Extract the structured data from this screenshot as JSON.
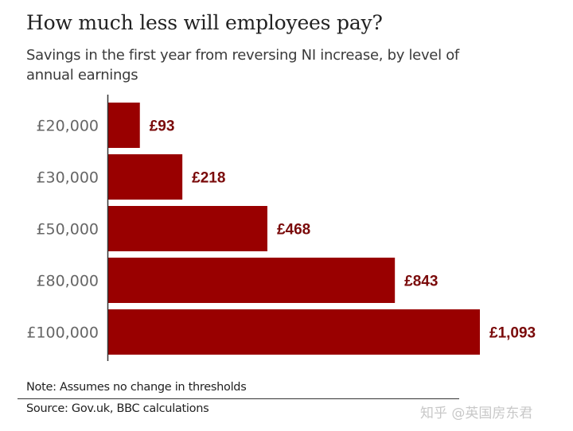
{
  "chart_data": {
    "type": "bar",
    "orientation": "horizontal",
    "title": "How much less will employees pay?",
    "subtitle": "Savings in the first year from reversing NI increase, by level of annual earnings",
    "categories": [
      "£20,000",
      "£30,000",
      "£50,000",
      "£80,000",
      "£100,000"
    ],
    "values": [
      93,
      218,
      468,
      843,
      1093
    ],
    "value_labels": [
      "£93",
      "£218",
      "£468",
      "£843",
      "£1,093"
    ],
    "xlabel": "",
    "ylabel": "",
    "xlim": [
      0,
      1093
    ],
    "grid": false,
    "bar_color": "#990000",
    "label_color": "#7a0a0a"
  },
  "footer": {
    "note": "Note: Assumes no change in thresholds",
    "source": "Source: Gov.uk, BBC calculations",
    "watermark": "知乎 @英国房东君"
  }
}
